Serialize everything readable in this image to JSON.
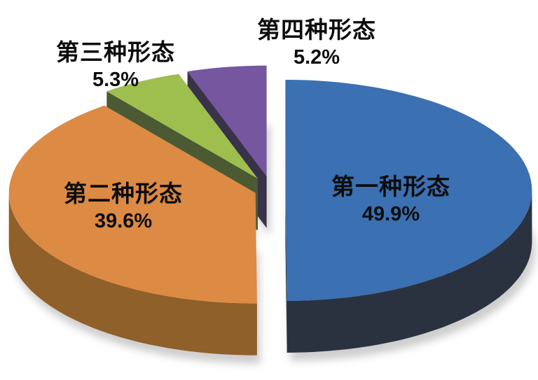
{
  "chart_data": {
    "type": "pie",
    "style": "3d-exploded",
    "title": "",
    "unit": "%",
    "total": 100.0,
    "direction": "clockwise",
    "start_angle_deg": -90,
    "legend": "none",
    "background_color": "#FFFFFF",
    "label_color": "#0D0D0D",
    "shadow_color": "#ADADAD",
    "slices": [
      {
        "label": "第一种形态",
        "value": 49.9,
        "display": "49.9%",
        "color": "#3B70B2",
        "side_color": "#2B323F",
        "explode": 0.055
      },
      {
        "label": "第二种形态",
        "value": 39.6,
        "display": "39.6%",
        "color": "#DC8A44",
        "side_color": "#8F6029",
        "explode": 0.07
      },
      {
        "label": "第三种形态",
        "value": 5.3,
        "display": "5.3%",
        "color": "#9EBE4D",
        "side_color": "#4C5A33",
        "explode": 0.12
      },
      {
        "label": "第四种形态",
        "value": 5.2,
        "display": "5.2%",
        "color": "#75569F",
        "side_color": "#393349",
        "explode": 0.13
      }
    ]
  }
}
